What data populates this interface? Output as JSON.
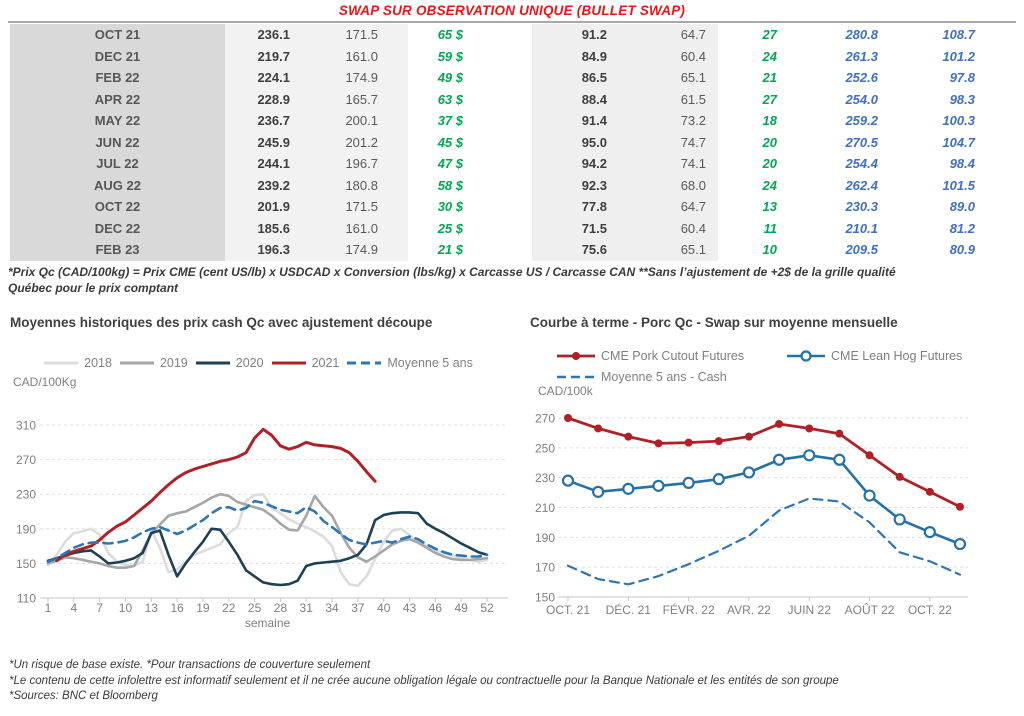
{
  "header": {
    "title": "SWAP SUR OBSERVATION UNIQUE (BULLET SWAP)"
  },
  "colors": {
    "title_red": "#ee1414",
    "green_value": "#00a651",
    "blue_value": "#3f6fc4",
    "month_col_bg": "#d9d9d9",
    "band_bg": "#f2f2f2"
  },
  "table": {
    "rows": [
      [
        "OCT 21",
        "236.1",
        "171.5",
        "65 $",
        "91.2",
        "64.7",
        "27",
        "280.8",
        "108.7"
      ],
      [
        "DEC 21",
        "219.7",
        "161.0",
        "59 $",
        "84.9",
        "60.4",
        "24",
        "261.3",
        "101.2"
      ],
      [
        "FEB 22",
        "224.1",
        "174.9",
        "49 $",
        "86.5",
        "65.1",
        "21",
        "252.6",
        "97.8"
      ],
      [
        "APR 22",
        "228.9",
        "165.7",
        "63 $",
        "88.4",
        "61.5",
        "27",
        "254.0",
        "98.3"
      ],
      [
        "MAY 22",
        "236.7",
        "200.1",
        "37 $",
        "91.4",
        "73.2",
        "18",
        "259.2",
        "100.3"
      ],
      [
        "JUN 22",
        "245.9",
        "201.2",
        "45 $",
        "95.0",
        "74.7",
        "20",
        "270.5",
        "104.7"
      ],
      [
        "JUL 22",
        "244.1",
        "196.7",
        "47 $",
        "94.2",
        "74.1",
        "20",
        "254.4",
        "98.4"
      ],
      [
        "AUG 22",
        "239.2",
        "180.8",
        "58 $",
        "92.3",
        "68.0",
        "24",
        "262.4",
        "101.5"
      ],
      [
        "OCT 22",
        "201.9",
        "171.5",
        "30 $",
        "77.8",
        "64.7",
        "13",
        "230.3",
        "89.0"
      ],
      [
        "DEC 22",
        "185.6",
        "161.0",
        "25 $",
        "71.5",
        "60.4",
        "11",
        "210.1",
        "81.2"
      ],
      [
        "FEB 23",
        "196.3",
        "174.9",
        "21 $",
        "75.6",
        "65.1",
        "10",
        "209.5",
        "80.9"
      ]
    ]
  },
  "table_note_lines": [
    "*Prix Qc (CAD/100kg) = Prix CME (cent US/lb) x USDCAD x Conversion (lbs/kg) x Carcasse US / Carcasse CAN **Sans l’ajustement de +2$ de la grille qualité",
    "Québec pour le prix comptant"
  ],
  "bottom_notes": [
    "*Un risque de base existe. *Pour transactions de couverture seulement",
    "*Le contenu de cette infolettre est informatif seulement et il ne crée aucune obligation légale ou contractuelle pour la Banque Nationale et les entités de son groupe",
    "*Sources: BNC et Bloomberg"
  ],
  "chart_data": [
    {
      "type": "line",
      "title": "Moyennes historiques des prix cash Qc avec ajustement découpe",
      "y_unit_label": "CAD/100Kg",
      "xlabel": "semaine",
      "x_range": [
        1,
        52
      ],
      "x_ticks": [
        1,
        4,
        7,
        10,
        13,
        16,
        19,
        22,
        25,
        28,
        31,
        34,
        37,
        40,
        43,
        46,
        49,
        52
      ],
      "ylim": [
        110,
        310
      ],
      "y_ticks": [
        110,
        150,
        190,
        230,
        270,
        310
      ],
      "grid": true,
      "legend_position": "top",
      "series": [
        {
          "name": "2018",
          "color": "#dcdcdc",
          "style": "solid",
          "width": 2.6,
          "marker": "none",
          "values": [
            148,
            160,
            175,
            185,
            187,
            190,
            183,
            162,
            152,
            148,
            147,
            152,
            188,
            168,
            140,
            143,
            152,
            160,
            164,
            168,
            172,
            185,
            192,
            222,
            229,
            230,
            214,
            208,
            201,
            196,
            192,
            187,
            181,
            170,
            140,
            126,
            124,
            135,
            155,
            175,
            188,
            190,
            183,
            174,
            170,
            165,
            162,
            159,
            156,
            154,
            152,
            154
          ]
        },
        {
          "name": "2019",
          "color": "#a6a6a6",
          "style": "solid",
          "width": 2.6,
          "marker": "none",
          "values": [
            150,
            153,
            157,
            156,
            154,
            152,
            150,
            147,
            145,
            145,
            147,
            165,
            185,
            195,
            205,
            208,
            210,
            215,
            220,
            226,
            230,
            228,
            221,
            218,
            215,
            212,
            205,
            196,
            189,
            188,
            205,
            228,
            215,
            205,
            185,
            168,
            157,
            152,
            158,
            165,
            172,
            176,
            178,
            174,
            168,
            162,
            158,
            155,
            154,
            154,
            155,
            156
          ]
        },
        {
          "name": "2020",
          "color": "#1d4054",
          "style": "solid",
          "width": 2.6,
          "marker": "none",
          "values": [
            153,
            156,
            159,
            162,
            164,
            165,
            158,
            150,
            151,
            153,
            156,
            162,
            185,
            188,
            160,
            135,
            150,
            163,
            175,
            190,
            189,
            175,
            160,
            142,
            135,
            128,
            126,
            125,
            126,
            130,
            147,
            150,
            151,
            152,
            153,
            156,
            160,
            172,
            200,
            206,
            208,
            209,
            209,
            208,
            196,
            190,
            185,
            179,
            173,
            168,
            163,
            160
          ]
        },
        {
          "name": "2021",
          "color": "#b02025",
          "style": "solid",
          "width": 3,
          "marker": "none",
          "values": [
            null,
            153,
            160,
            164,
            167,
            170,
            177,
            186,
            193,
            198,
            206,
            214,
            222,
            232,
            241,
            249,
            255,
            259,
            262,
            265,
            268,
            270,
            273,
            278,
            295,
            305,
            298,
            286,
            282,
            285,
            290,
            287,
            286,
            285,
            283,
            278,
            268,
            256,
            245,
            null,
            null,
            null,
            null,
            null,
            null,
            null,
            null,
            null,
            null,
            null,
            null,
            null
          ]
        },
        {
          "name": "Moyenne 5 ans",
          "color": "#2e75b6",
          "style": "dashed",
          "width": 2.6,
          "marker": "none",
          "values": [
            152,
            156,
            162,
            168,
            172,
            174,
            174,
            173,
            174,
            176,
            180,
            186,
            190,
            192,
            188,
            184,
            188,
            194,
            200,
            208,
            214,
            215,
            211,
            214,
            222,
            220,
            216,
            212,
            210,
            208,
            215,
            210,
            199,
            192,
            184,
            177,
            174,
            172,
            174,
            176,
            174,
            178,
            181,
            178,
            172,
            167,
            163,
            160,
            159,
            158,
            158,
            160
          ]
        }
      ]
    },
    {
      "type": "line",
      "title": "Courbe à terme - Porc Qc - Swap sur moyenne mensuelle",
      "y_unit_label": "CAD/100k",
      "n_points": 14,
      "x_tick_indices": [
        0,
        2,
        4,
        6,
        8,
        10,
        12
      ],
      "x_tick_labels": [
        "OCT. 21",
        "DÉC. 21",
        "FÉVR. 22",
        "AVR. 22",
        "JUIN 22",
        "AOÛT 22",
        "OCT. 22"
      ],
      "ylim": [
        150,
        270
      ],
      "y_ticks": [
        150,
        170,
        190,
        210,
        230,
        250,
        270
      ],
      "grid": true,
      "legend_position": "top",
      "series": [
        {
          "name": "CME Pork Cutout Futures",
          "color": "#b02025",
          "style": "solid",
          "width": 2.8,
          "marker": "filled-circle",
          "values": [
            270,
            263,
            257.5,
            253,
            253.5,
            254.5,
            257.5,
            266,
            263,
            259.5,
            245,
            230.5,
            220.5,
            210.5
          ]
        },
        {
          "name": "CME Lean Hog Futures",
          "color": "#2470a8",
          "style": "solid",
          "width": 2.6,
          "marker": "open-circle",
          "values": [
            228,
            220.5,
            222.5,
            224.5,
            226.5,
            229,
            233.5,
            242,
            245,
            242,
            218,
            202,
            193.5,
            185.5
          ]
        },
        {
          "name": "Moyenne 5 ans - Cash",
          "color": "#2e75b6",
          "style": "dashed",
          "width": 2.2,
          "marker": "none",
          "values": [
            171,
            162,
            158.5,
            164,
            172,
            181,
            191,
            208,
            216,
            214,
            200,
            180,
            174,
            165
          ]
        }
      ]
    }
  ]
}
